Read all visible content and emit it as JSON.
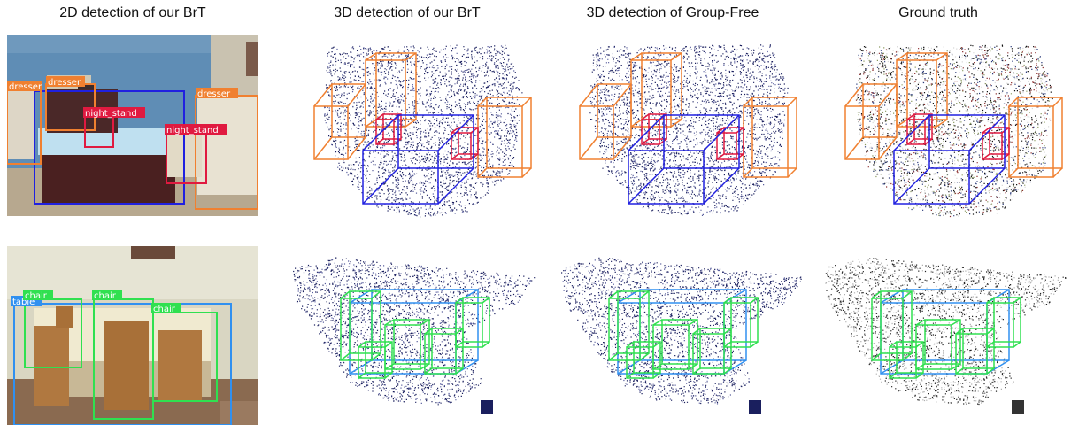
{
  "columns": [
    {
      "title": "2D detection of our BrT"
    },
    {
      "title": "3D detection of our BrT"
    },
    {
      "title": "3D detection of Group-Free"
    },
    {
      "title": "Ground truth"
    }
  ],
  "rows": [
    {
      "scene": "bedroom",
      "detections_2d": [
        {
          "label": "dresser",
          "color": "#f08030"
        },
        {
          "label": "dresser",
          "color": "#f08030"
        },
        {
          "label": "dresser",
          "color": "#f08030"
        },
        {
          "label": "night_stand",
          "color": "#e01a40"
        },
        {
          "label": "night_stand",
          "color": "#e01a40"
        },
        {
          "label": "",
          "color": "#2020e0"
        }
      ]
    },
    {
      "scene": "dining room",
      "detections_2d": [
        {
          "label": "chair",
          "color": "#30e050"
        },
        {
          "label": "chair",
          "color": "#30e050"
        },
        {
          "label": "chair",
          "color": "#30e050"
        },
        {
          "label": "table",
          "color": "#3090f0"
        }
      ]
    }
  ],
  "colors": {
    "dresser": "#f08030",
    "night_stand": "#e01a40",
    "bed": "#2020e0",
    "chair": "#30e050",
    "table": "#3090f0",
    "points": "#1a1f5e"
  }
}
